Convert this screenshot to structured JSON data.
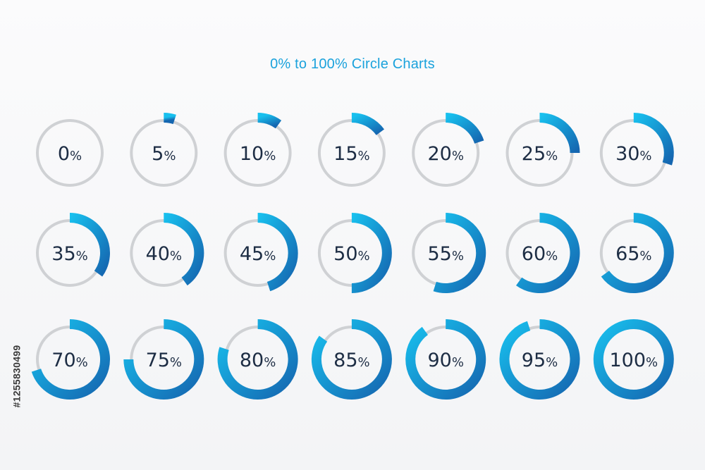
{
  "title": "0% to 100% Circle Charts",
  "stock_id": "#1255830499",
  "colors": {
    "track": "#cfd1d4",
    "gradient_start": "#18c0ee",
    "gradient_end": "#1566b0",
    "label": "#1d2d44",
    "title": "#1ba2dc"
  },
  "chart_data": {
    "type": "donut-grid",
    "title": "0% to 100% Circle Charts",
    "columns": 7,
    "rows": 3,
    "items": [
      {
        "value": 0,
        "label": "0",
        "unit": "%"
      },
      {
        "value": 5,
        "label": "5",
        "unit": "%"
      },
      {
        "value": 10,
        "label": "10",
        "unit": "%"
      },
      {
        "value": 15,
        "label": "15",
        "unit": "%"
      },
      {
        "value": 20,
        "label": "20",
        "unit": "%"
      },
      {
        "value": 25,
        "label": "25",
        "unit": "%"
      },
      {
        "value": 30,
        "label": "30",
        "unit": "%"
      },
      {
        "value": 35,
        "label": "35",
        "unit": "%"
      },
      {
        "value": 40,
        "label": "40",
        "unit": "%"
      },
      {
        "value": 45,
        "label": "45",
        "unit": "%"
      },
      {
        "value": 50,
        "label": "50",
        "unit": "%"
      },
      {
        "value": 55,
        "label": "55",
        "unit": "%"
      },
      {
        "value": 60,
        "label": "60",
        "unit": "%"
      },
      {
        "value": 65,
        "label": "65",
        "unit": "%"
      },
      {
        "value": 70,
        "label": "70",
        "unit": "%"
      },
      {
        "value": 75,
        "label": "75",
        "unit": "%"
      },
      {
        "value": 80,
        "label": "80",
        "unit": "%"
      },
      {
        "value": 85,
        "label": "85",
        "unit": "%"
      },
      {
        "value": 90,
        "label": "90",
        "unit": "%"
      },
      {
        "value": 95,
        "label": "95",
        "unit": "%"
      },
      {
        "value": 100,
        "label": "100",
        "unit": "%"
      }
    ]
  }
}
